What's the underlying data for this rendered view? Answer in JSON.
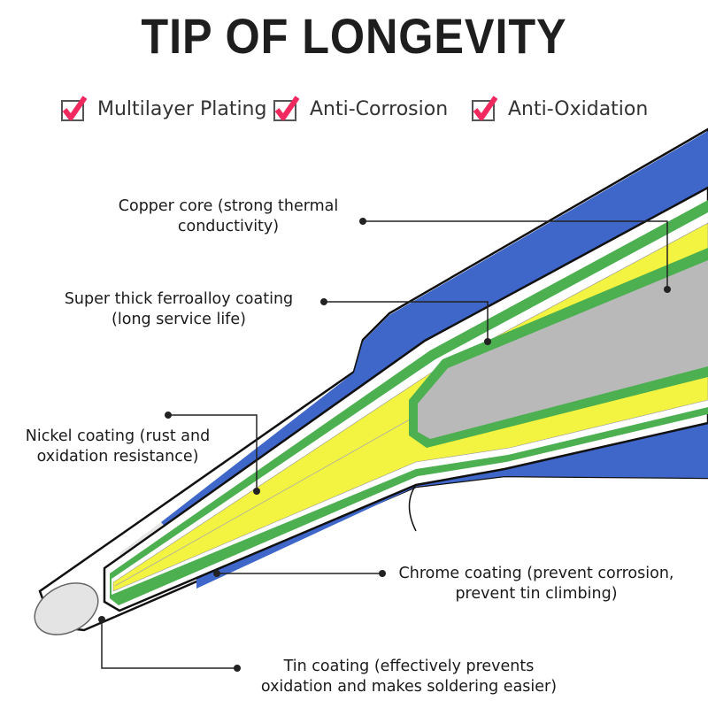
{
  "title": "TIP OF LONGEVITY",
  "features": [
    {
      "label": "Multilayer Plating",
      "icon": "checkbox-checked-icon"
    },
    {
      "label": "Anti-Corrosion",
      "icon": "checkbox-checked-icon"
    },
    {
      "label": "Anti-Oxidation",
      "icon": "checkbox-checked-icon"
    }
  ],
  "colors": {
    "check": "#f0295f",
    "shank": "#3f66c9",
    "green": "#4caf50",
    "yellow": "#f3f342",
    "core": "#b9b9b9"
  },
  "labels": {
    "copper": [
      "Copper core (strong thermal",
      "conductivity)"
    ],
    "ferro": [
      "Super thick ferroalloy coating",
      "(long service life)"
    ],
    "nickel": [
      "Nickel coating (rust and",
      "oxidation resistance)"
    ],
    "chrome": [
      "Chrome coating (prevent corrosion,",
      "prevent tin climbing)"
    ],
    "tin": [
      "Tin coating (effectively prevents",
      "oxidation and makes soldering easier)"
    ]
  }
}
